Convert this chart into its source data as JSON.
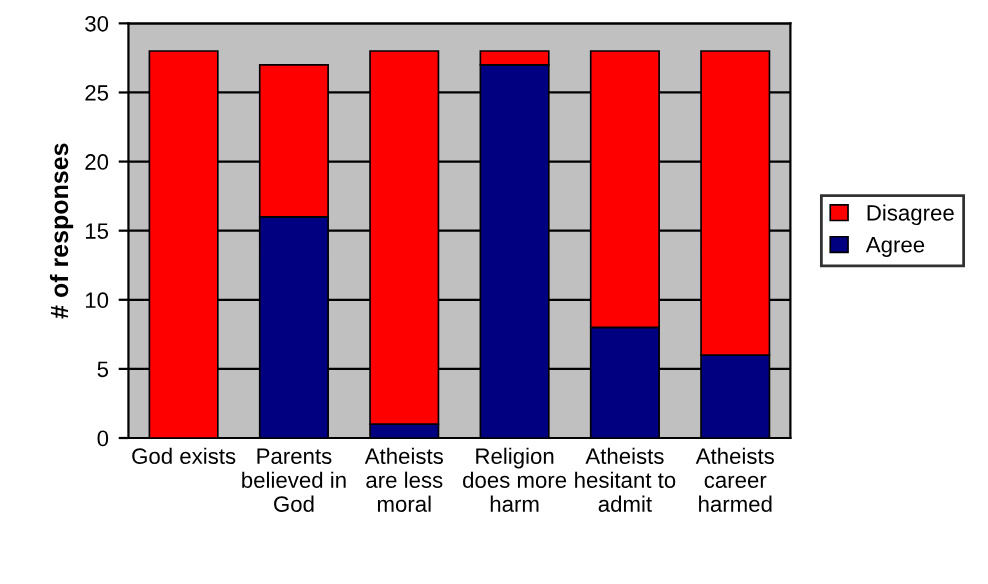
{
  "chart_data": {
    "type": "bar",
    "stacked": true,
    "ylabel": "# of responses",
    "categories": [
      "God exists",
      "Parents\nbelieved in\nGod",
      "Atheists\nare less\nmoral",
      "Religion\ndoes more\nharm",
      "Atheists\nhesitant to\nadmit",
      "Atheists\ncareer\nharmed"
    ],
    "series": [
      {
        "name": "Agree",
        "color": "#000080",
        "values": [
          0,
          16,
          1,
          27,
          8,
          6
        ]
      },
      {
        "name": "Disagree",
        "color": "#ff0000",
        "values": [
          28,
          11,
          27,
          1,
          20,
          22
        ]
      }
    ],
    "ylim": [
      0,
      30
    ],
    "yticks": [
      0,
      5,
      10,
      15,
      20,
      25,
      30
    ],
    "grid": "y",
    "legend": "right"
  }
}
